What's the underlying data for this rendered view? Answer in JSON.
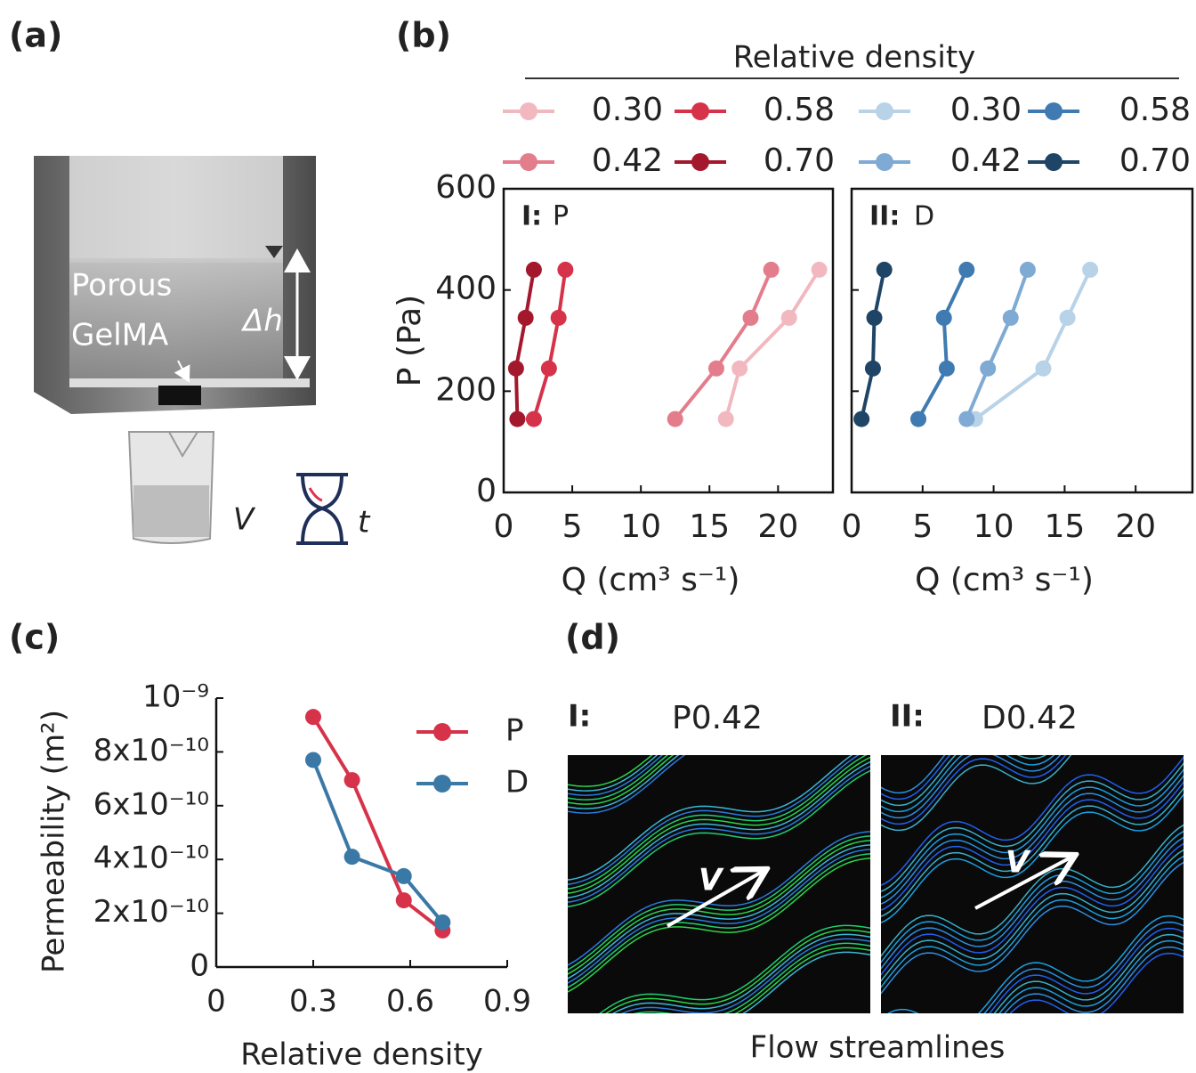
{
  "figure": {
    "panel_labels": [
      "(a)",
      "(b)",
      "(c)",
      "(d)"
    ],
    "a": {
      "sample_label": [
        "Porous",
        "GelMA"
      ],
      "height_label": "Δh",
      "volume_label": "V",
      "time_label": "t"
    },
    "b": {
      "legend_title": "Relative density"
    },
    "d": {
      "panels": [
        {
          "label": "I:",
          "title": "P0.42",
          "vector": "V"
        },
        {
          "label": "II:",
          "title": "D0.42",
          "vector": "V"
        }
      ],
      "caption": "Flow streamlines"
    }
  },
  "chart_data": [
    {
      "type": "line",
      "panel_label": "I:",
      "title": "P",
      "xlabel": "Q (cm³ s⁻¹)",
      "ylabel": "P (Pa)",
      "xlim": [
        0,
        24
      ],
      "ylim": [
        0,
        600
      ],
      "xticks": [
        0,
        5,
        10,
        15,
        20
      ],
      "yticks": [
        0,
        200,
        400,
        600
      ],
      "show_ytick_labels": true,
      "series": [
        {
          "name": "0.30",
          "color": "#f2b8c0",
          "x": [
            16.2,
            17.2,
            20.8,
            23.0
          ],
          "values": [
            145,
            245,
            345,
            440
          ]
        },
        {
          "name": "0.42",
          "color": "#e37d8c",
          "x": [
            12.5,
            15.5,
            18.0,
            19.5
          ],
          "values": [
            145,
            245,
            345,
            440
          ]
        },
        {
          "name": "0.58",
          "color": "#d6334a",
          "x": [
            2.2,
            3.3,
            4.0,
            4.5
          ],
          "values": [
            145,
            245,
            345,
            440
          ]
        },
        {
          "name": "0.70",
          "color": "#a3182d",
          "x": [
            1.0,
            0.9,
            1.6,
            2.2
          ],
          "values": [
            145,
            245,
            345,
            440
          ]
        }
      ]
    },
    {
      "type": "line",
      "panel_label": "II:",
      "title": "D",
      "xlabel": "Q (cm³ s⁻¹)",
      "xlim": [
        0,
        24
      ],
      "ylim": [
        0,
        600
      ],
      "xticks": [
        0,
        5,
        10,
        15,
        20
      ],
      "yticks": [
        0,
        200,
        400,
        600
      ],
      "show_ytick_labels": false,
      "series": [
        {
          "name": "0.30",
          "color": "#b8d2e8",
          "x": [
            8.7,
            13.5,
            15.2,
            16.8
          ],
          "values": [
            145,
            245,
            345,
            440
          ]
        },
        {
          "name": "0.42",
          "color": "#7eaad3",
          "x": [
            8.1,
            9.6,
            11.2,
            12.4
          ],
          "values": [
            145,
            245,
            345,
            440
          ]
        },
        {
          "name": "0.58",
          "color": "#3f7bb0",
          "x": [
            4.7,
            6.7,
            6.5,
            8.1
          ],
          "values": [
            145,
            245,
            345,
            440
          ]
        },
        {
          "name": "0.70",
          "color": "#1f4566",
          "x": [
            0.7,
            1.5,
            1.6,
            2.3
          ],
          "values": [
            145,
            245,
            345,
            440
          ]
        }
      ]
    },
    {
      "type": "line",
      "xlabel": "Relative density",
      "ylabel": "Permeability (m²)",
      "xlim": [
        0,
        0.9
      ],
      "ylim": [
        0,
        1e-09
      ],
      "xticks": [
        0,
        0.3,
        0.6,
        0.9
      ],
      "yticks": [
        0,
        {
          "value": 2e-10,
          "label": "2x10⁻¹⁰"
        },
        {
          "value": 4e-10,
          "label": "4x10⁻¹⁰"
        },
        {
          "value": 6e-10,
          "label": "6x10⁻¹⁰"
        },
        {
          "value": 8e-10,
          "label": "8x10⁻¹⁰"
        },
        {
          "value": 1e-09,
          "label": "10⁻⁹"
        }
      ],
      "show_ytick_labels": true,
      "series": [
        {
          "name": "P",
          "color": "#d6334a",
          "x": [
            0.3,
            0.42,
            0.58,
            0.7
          ],
          "values": [
            9.3e-10,
            6.95e-10,
            2.48e-10,
            1.36e-10
          ]
        },
        {
          "name": "D",
          "color": "#3a78a6",
          "x": [
            0.3,
            0.42,
            0.58,
            0.7
          ],
          "values": [
            7.7e-10,
            4.1e-10,
            3.38e-10,
            1.66e-10
          ]
        }
      ]
    }
  ]
}
